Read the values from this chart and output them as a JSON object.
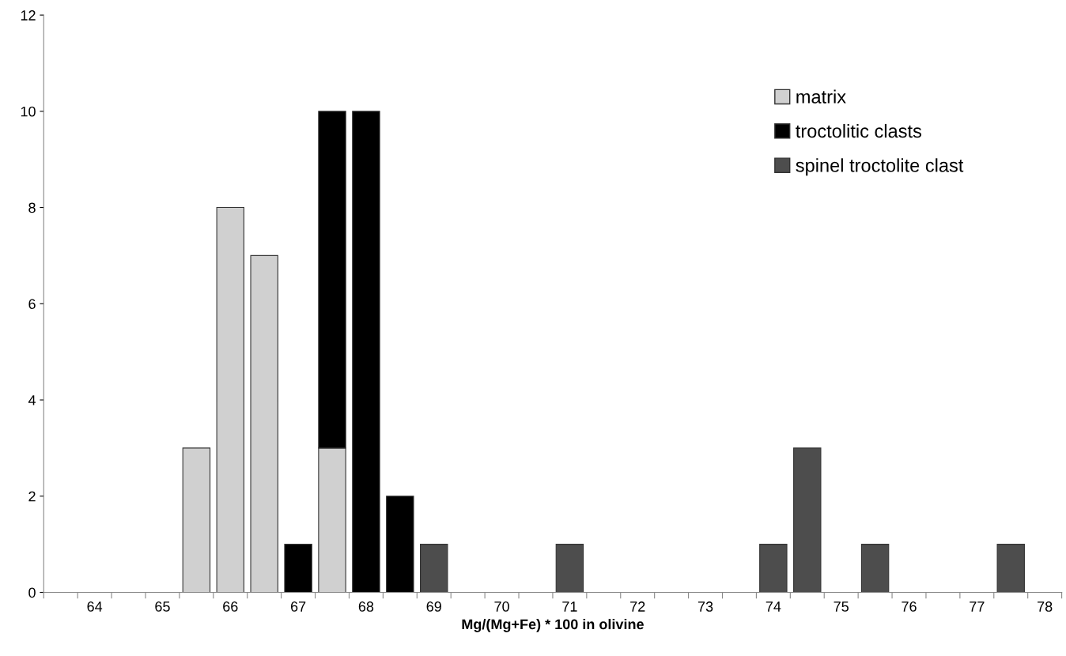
{
  "chart_data": {
    "type": "bar",
    "xlabel": "Mg/(Mg+Fe) * 100 in olivine",
    "categories": [
      null,
      "64",
      null,
      "65",
      null,
      "66",
      null,
      "67",
      null,
      "68",
      null,
      "69",
      null,
      "70",
      null,
      "71",
      null,
      "72",
      null,
      "73",
      null,
      "74",
      null,
      "75",
      null,
      "76",
      null,
      "77",
      null,
      "78"
    ],
    "stacked": true,
    "series": [
      {
        "name": "matrix",
        "color": "#d0d0d0",
        "values": [
          null,
          null,
          null,
          null,
          3,
          8,
          7,
          null,
          3,
          null,
          null,
          null,
          null,
          null,
          null,
          null,
          null,
          null,
          null,
          null,
          null,
          null,
          null,
          null,
          null,
          null,
          null,
          null,
          null,
          null
        ]
      },
      {
        "name": "troctolitic clasts",
        "color": "#000000",
        "values": [
          null,
          null,
          null,
          null,
          null,
          null,
          null,
          1,
          7,
          10,
          2,
          null,
          null,
          null,
          null,
          null,
          null,
          null,
          null,
          null,
          null,
          null,
          null,
          null,
          null,
          null,
          null,
          null,
          null,
          null
        ]
      },
      {
        "name": "spinel troctolite clast",
        "color": "#4d4d4d",
        "values": [
          null,
          null,
          null,
          null,
          null,
          null,
          null,
          null,
          null,
          null,
          null,
          1,
          null,
          null,
          null,
          1,
          null,
          null,
          null,
          null,
          null,
          1,
          3,
          null,
          1,
          null,
          null,
          null,
          1,
          null
        ]
      }
    ],
    "ylim": [
      0,
      12
    ],
    "yticks": [
      0,
      2,
      4,
      6,
      8,
      10,
      12
    ],
    "grid": false,
    "legend": "top right"
  }
}
